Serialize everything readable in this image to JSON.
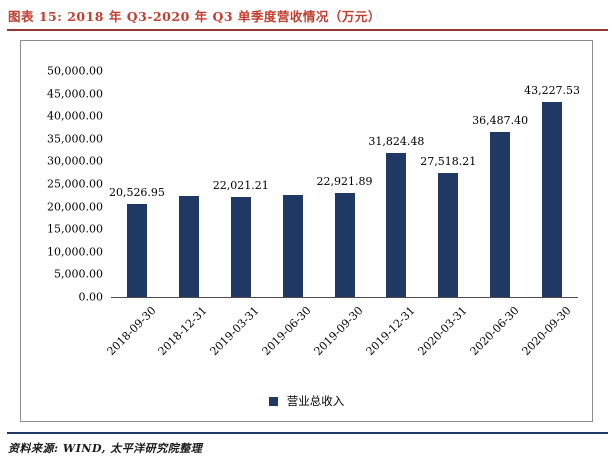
{
  "figure": {
    "title": "图表 15: 2018 年 Q3-2020 年 Q3 单季度营收情况（万元）",
    "title_color": "#C43E2E",
    "rule_color": "#943634",
    "bottom_rule_color": "#1F3864",
    "source_label": "资料来源: WIND, 太平洋研究院整理"
  },
  "chart_data": {
    "type": "bar",
    "title": "2018 年 Q3-2020 年 Q3 单季度营收情况（万元）",
    "categories": [
      "2018-09-30",
      "2018-12-31",
      "2019-03-31",
      "2019-06-30",
      "2019-09-30",
      "2019-12-31",
      "2020-03-31",
      "2020-06-30",
      "2020-09-30"
    ],
    "values": [
      20526.95,
      22400,
      22021.21,
      22500,
      22921.89,
      31824.48,
      27518.21,
      36487.4,
      43227.53
    ],
    "data_labels": [
      "20,526.95",
      "",
      "22,021.21",
      "",
      "22,921.89",
      "31,824.48",
      "27,518.21",
      "36,487.40",
      "43,227.53"
    ],
    "bar_color": "#1F3864",
    "xlabel": "",
    "ylabel": "",
    "ylim": [
      0,
      50000
    ],
    "y_tick_step": 5000,
    "y_ticks": [
      "50,000.00",
      "45,000.00",
      "40,000.00",
      "35,000.00",
      "30,000.00",
      "25,000.00",
      "20,000.00",
      "15,000.00",
      "10,000.00",
      "5,000.00",
      "0.00"
    ],
    "grid": false,
    "legend_position": "bottom",
    "legend": [
      {
        "label": "营业总收入",
        "color": "#1F3864"
      }
    ]
  }
}
